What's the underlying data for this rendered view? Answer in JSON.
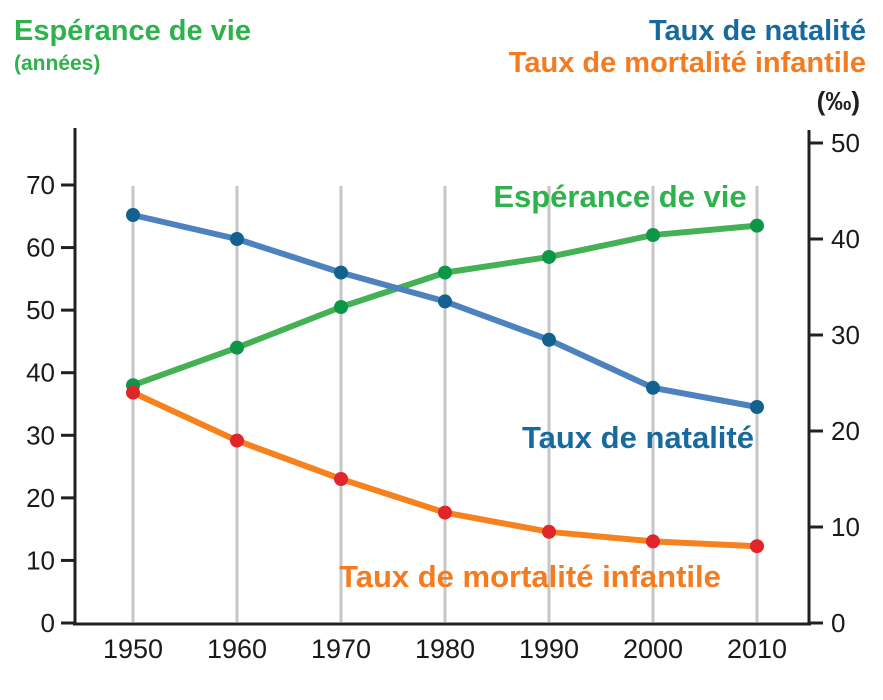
{
  "header": {
    "left_title": "Espérance de vie",
    "left_subtitle": "(années)",
    "right_title_natalite": "Taux de natalité",
    "right_title_mortalite": "Taux de mortalité infantile",
    "right_unit": "(‰)"
  },
  "plot_labels": {
    "esperance": "Espérance de vie",
    "natalite": "Taux de natalité",
    "mortalite": "Taux de mortalité infantile"
  },
  "colors": {
    "green_text": "#2eb24c",
    "blue_text": "#176a9e",
    "orange_text": "#f47b20",
    "axis": "#231f20",
    "grid": "#c6c6c6"
  },
  "chart_data": {
    "type": "line",
    "x": [
      1950,
      1960,
      1970,
      1980,
      1990,
      2000,
      2010
    ],
    "left_axis": {
      "label": "Espérance de vie (années)",
      "ticks": [
        0,
        10,
        20,
        30,
        40,
        50,
        60,
        70
      ],
      "range": [
        0,
        70
      ]
    },
    "right_axis": {
      "label": "(‰)",
      "ticks": [
        0,
        10,
        20,
        30,
        40,
        50
      ],
      "range": [
        0,
        50
      ]
    },
    "grid": "vertical",
    "legend": "in-plot labels",
    "series": [
      {
        "name": "Espérance de vie",
        "axis": "left",
        "color": "#43b154",
        "dot_color": "#0e9648",
        "values": [
          38,
          44,
          50.5,
          56,
          58.5,
          62,
          63.5
        ]
      },
      {
        "name": "Taux de natalité",
        "axis": "right",
        "color": "#4d82be",
        "dot_color": "#13618e",
        "values": [
          42.5,
          40,
          36.5,
          33.5,
          29.5,
          24.5,
          22.5
        ]
      },
      {
        "name": "Taux de mortalité infantile",
        "axis": "right",
        "color": "#f5821f",
        "dot_color": "#e0252b",
        "values": [
          24,
          19,
          15,
          11.5,
          9.5,
          8.5,
          8
        ]
      }
    ]
  }
}
